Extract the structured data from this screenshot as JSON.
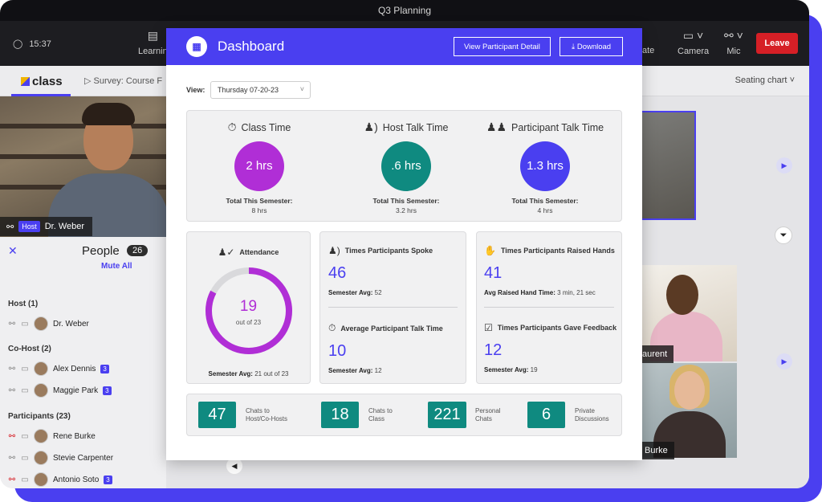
{
  "window": {
    "title": "Q3 Planning"
  },
  "toolbar": {
    "time": "15:37",
    "learning_label": "Learnin",
    "te_label": "ate",
    "camera_label": "Camera",
    "mic_label": "Mic",
    "leave_label": "Leave"
  },
  "subbar": {
    "logo": "class",
    "survey_tab": "Survey: Course F",
    "seating_chart": "Seating chart"
  },
  "host_video": {
    "badge": "Host",
    "name": "Dr. Weber"
  },
  "people": {
    "title": "People",
    "count": "26",
    "mute_all": "Mute All",
    "host_group": "Host (1)",
    "host": {
      "name": "Dr. Weber"
    },
    "cohost_group": "Co-Host (2)",
    "cohosts": [
      {
        "name": "Alex Dennis",
        "chat_count": "3"
      },
      {
        "name": "Maggie Park",
        "chat_count": "3"
      }
    ],
    "participants_group": "Participants (23)",
    "participants": [
      {
        "name": "Rene Burke"
      },
      {
        "name": "Stevie Carpenter"
      },
      {
        "name": "Antonio Soto",
        "chat_count": "3"
      }
    ]
  },
  "right_videos": {
    "name_laurent": "aurent",
    "name_burke": "Burke"
  },
  "modal": {
    "title": "Dashboard",
    "view_detail_button": "View Participant Detail",
    "download_button": "Download",
    "view_label": "View:",
    "view_value": "Thursday 07-20-23",
    "times": [
      {
        "title": "Class Time",
        "value": "2 hrs",
        "sem_label": "Total This Semester:",
        "sem_value": "8 hrs",
        "color": "#b02ed6"
      },
      {
        "title": "Host Talk Time",
        "value": ".6 hrs",
        "sem_label": "Total This Semester:",
        "sem_value": "3.2 hrs",
        "color": "#0f8a80"
      },
      {
        "title": "Participant Talk Time",
        "value": "1.3 hrs",
        "sem_label": "Total This Semester:",
        "sem_value": "4 hrs",
        "color": "#4a3ff0"
      }
    ],
    "attendance": {
      "title": "Attendance",
      "value": "19",
      "out_of": "out of 23",
      "present": 19,
      "total": 23,
      "sem_label": "Semester Avg:",
      "sem_value": "21 out of 23"
    },
    "spoke": {
      "title": "Times Participants Spoke",
      "value": "46",
      "sub_label": "Semester Avg:",
      "sub_value": "52"
    },
    "avg_talk": {
      "title": "Average Participant Talk Time",
      "value": "10",
      "sub_label": "Semester Avg:",
      "sub_value": "12"
    },
    "raised": {
      "title": "Times Participants Raised Hands",
      "value": "41",
      "sub_label": "Avg Raised Hand Time:",
      "sub_value": "3 min, 21 sec"
    },
    "feedback": {
      "title": "Times Participants Gave Feedback",
      "value": "12",
      "sub_label": "Semester Avg:",
      "sub_value": "19"
    },
    "chats": [
      {
        "value": "47",
        "line1": "Chats to",
        "line2": "Host/Co-Hosts"
      },
      {
        "value": "18",
        "line1": "Chats to",
        "line2": "Class"
      },
      {
        "value": "221",
        "line1": "Personal",
        "line2": "Chats"
      },
      {
        "value": "6",
        "line1": "Private",
        "line2": "Discussions"
      }
    ]
  }
}
